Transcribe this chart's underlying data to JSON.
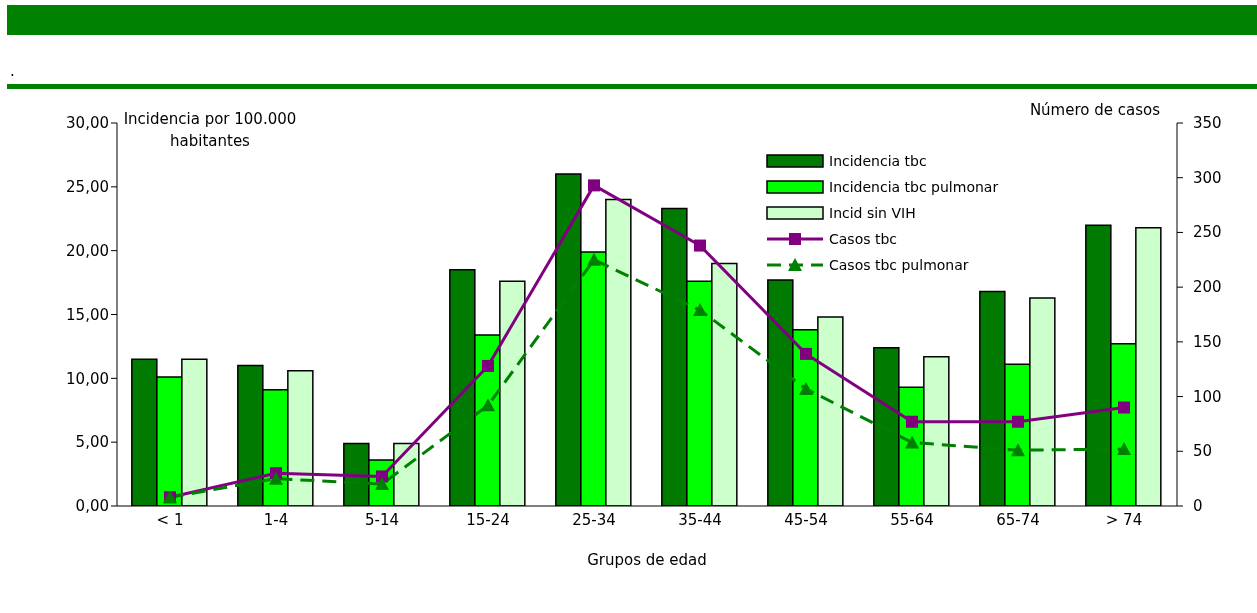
{
  "chart_data": {
    "type": "bar",
    "annotations": [
      "."
    ],
    "xlabel": "Grupos de edad",
    "ylabel": "Incidencia por 100.000 habitantes",
    "y2label": "Número de casos",
    "categories": [
      "< 1",
      "1-4",
      "5-14",
      "15-24",
      "25-34",
      "35-44",
      "45-54",
      "55-64",
      "65-74",
      "> 74"
    ],
    "series": [
      {
        "name": "Incidencia tbc",
        "color": "#007a00",
        "values": [
          11.5,
          11.0,
          4.9,
          18.5,
          26.0,
          23.3,
          17.7,
          12.4,
          16.8,
          22.0
        ]
      },
      {
        "name": "Incidencia tbc pulmonar",
        "color": "#00ff00",
        "values": [
          10.1,
          9.1,
          3.6,
          13.4,
          19.9,
          17.6,
          13.8,
          9.3,
          11.1,
          12.7
        ]
      },
      {
        "name": "Incid sin VIH",
        "color": "#ccffcc",
        "values": [
          11.5,
          10.6,
          4.9,
          17.6,
          24.0,
          19.0,
          14.8,
          11.7,
          16.3,
          21.8
        ]
      },
      {
        "name": "Casos tbc",
        "type": "line",
        "axis": "y2",
        "color": "#800080",
        "marker": "square",
        "line_style": "solid",
        "values": [
          8,
          30,
          27,
          128,
          293,
          238,
          139,
          77,
          77,
          90
        ]
      },
      {
        "name": "Casos tbc pulmonar",
        "type": "line",
        "axis": "y2",
        "color": "#008000",
        "marker": "triangle",
        "line_style": "dashed",
        "values": [
          8,
          25,
          20,
          92,
          225,
          179,
          107,
          58,
          51,
          52
        ]
      }
    ],
    "ylim": [
      0,
      30
    ],
    "yticks": [
      {
        "value": 0,
        "label": "0,00"
      },
      {
        "value": 5,
        "label": "5,00"
      },
      {
        "value": 10,
        "label": "10,00"
      },
      {
        "value": 15,
        "label": "15,00"
      },
      {
        "value": 20,
        "label": "20,00"
      },
      {
        "value": 25,
        "label": "25,00"
      },
      {
        "value": 30,
        "label": "30,00"
      }
    ],
    "y2lim": [
      0,
      350
    ],
    "y2ticks": [
      0,
      50,
      100,
      150,
      200,
      250,
      300,
      350
    ],
    "legend": "top right",
    "grid": false
  }
}
